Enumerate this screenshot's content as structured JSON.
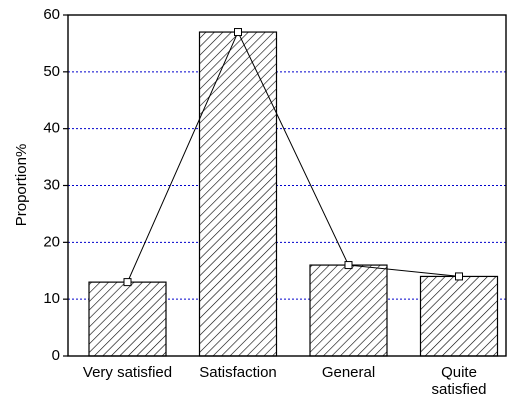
{
  "chart_data": {
    "type": "bar",
    "ylabel": "Proportion%",
    "categories": [
      "Very satisfied",
      "Satisfaction",
      "General",
      "Quite satisfied"
    ],
    "values": [
      13,
      57,
      16,
      14
    ],
    "color": "#000000",
    "line_color": "#000000",
    "grid_color": "#0000cc",
    "ylim": [
      0,
      60
    ],
    "yticks": [
      0,
      10,
      20,
      30,
      40,
      50,
      60
    ],
    "grid": true
  }
}
